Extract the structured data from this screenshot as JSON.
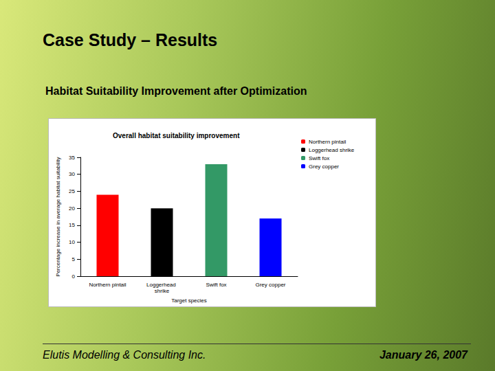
{
  "slide": {
    "title": "Case Study – Results",
    "subtitle": "Habitat Suitability Improvement after Optimization",
    "footer_left": "Elutis Modelling & Consulting Inc.",
    "footer_right": "January 26, 2007"
  },
  "chart_data": {
    "type": "bar",
    "title": "Overall habitat suitability improvement",
    "x_label": "Target species",
    "y_label": "Percentage increase in average habitat suitability",
    "categories": [
      "Northern pintail",
      "Loggerhead shrike",
      "Swift fox",
      "Grey copper"
    ],
    "values": [
      24,
      20,
      33,
      17
    ],
    "colors": [
      "#ff0000",
      "#000000",
      "#339966",
      "#0000ff"
    ],
    "ylim": [
      0,
      35
    ],
    "yticks": [
      0,
      5,
      10,
      15,
      20,
      25,
      30,
      35
    ],
    "grid": false,
    "legend": "top-right"
  }
}
